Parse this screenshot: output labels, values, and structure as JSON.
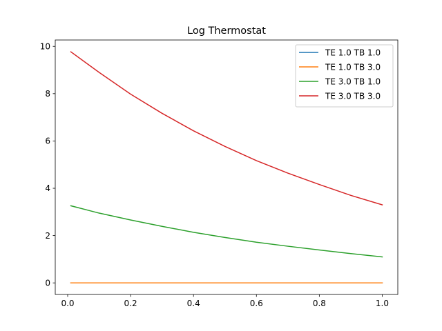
{
  "chart_data": {
    "type": "line",
    "title": "Log Thermostat",
    "xlabel": "",
    "ylabel": "",
    "xlim": [
      -0.0395,
      1.0495
    ],
    "ylim": [
      -0.489,
      10.269
    ],
    "x_ticks": [
      0.0,
      0.2,
      0.4,
      0.6,
      0.8,
      1.0
    ],
    "x_tick_labels": [
      "0.0",
      "0.2",
      "0.4",
      "0.6",
      "0.8",
      "1.0"
    ],
    "y_ticks": [
      0,
      2,
      4,
      6,
      8,
      10
    ],
    "y_tick_labels": [
      "0",
      "2",
      "4",
      "6",
      "8",
      "10"
    ],
    "grid": false,
    "legend_position": "top-right",
    "x": [
      0.01,
      0.1,
      0.2,
      0.3,
      0.4,
      0.5,
      0.6,
      0.7,
      0.8,
      0.9,
      1.0
    ],
    "series": [
      {
        "name": "TE 1.0 TB 1.0",
        "color": "#1f77b4",
        "values": [
          0,
          0,
          0,
          0,
          0,
          0,
          0,
          0,
          0,
          0,
          0
        ]
      },
      {
        "name": "TE 1.0 TB 3.0",
        "color": "#ff7f0e",
        "values": [
          0,
          0,
          0,
          0,
          0,
          0,
          0,
          0,
          0,
          0,
          0
        ]
      },
      {
        "name": "TE 3.0 TB 1.0",
        "color": "#2ca02c",
        "values": [
          3.26,
          2.95,
          2.66,
          2.39,
          2.14,
          1.92,
          1.72,
          1.55,
          1.39,
          1.24,
          1.1
        ]
      },
      {
        "name": "TE 3.0 TB 3.0",
        "color": "#d62728",
        "values": [
          9.77,
          8.9,
          7.98,
          7.17,
          6.43,
          5.77,
          5.17,
          4.64,
          4.16,
          3.7,
          3.3
        ]
      }
    ]
  }
}
